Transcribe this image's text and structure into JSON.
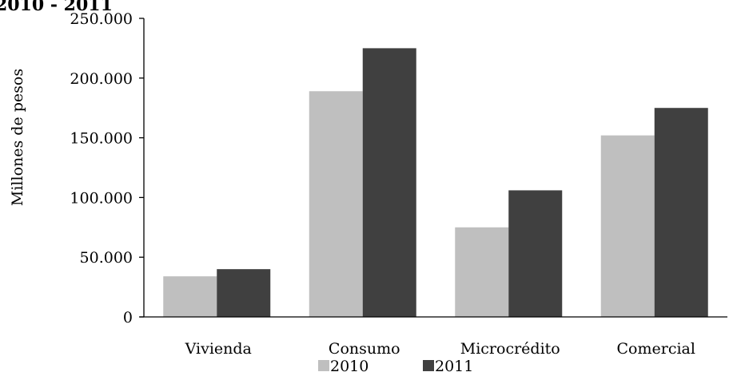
{
  "chart_data": {
    "type": "bar",
    "title": "2010 - 2011",
    "ylabel": "Millones de pesos",
    "xlabel": "",
    "categories": [
      "Vivienda",
      "Consumo",
      "Microcrédito",
      "Comercial"
    ],
    "series": [
      {
        "name": "2010",
        "values": [
          34000,
          189000,
          75000,
          152000
        ],
        "color": "#bfbfbf"
      },
      {
        "name": "2011",
        "values": [
          40000,
          225000,
          106000,
          175000
        ],
        "color": "#404040"
      }
    ],
    "ylim": [
      0,
      250000
    ],
    "yticks": [
      0,
      50000,
      100000,
      150000,
      200000,
      250000
    ],
    "ytick_labels": [
      "0",
      "50.000",
      "100.000",
      "150.000",
      "200.000",
      "250.000"
    ],
    "grid": false,
    "legend_position": "bottom"
  }
}
